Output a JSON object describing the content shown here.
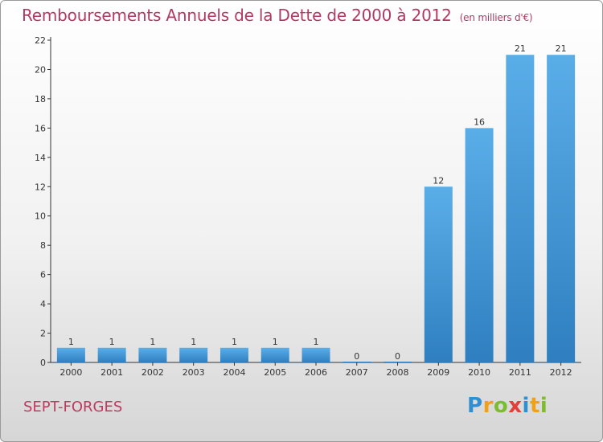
{
  "header": {
    "title": "Remboursements Annuels de la Dette de 2000 à 2012",
    "unit": "(en milliers d'€)"
  },
  "footer": {
    "place": "SEPT-FORGES",
    "logo": [
      "P",
      "r",
      "o",
      "x",
      "i",
      "t",
      "i"
    ]
  },
  "colors": {
    "bar_top": "#5aaee8",
    "bar_bottom": "#2f7fc0",
    "title": "#b03a62"
  },
  "chart_data": {
    "type": "bar",
    "categories": [
      "2000",
      "2001",
      "2002",
      "2003",
      "2004",
      "2005",
      "2006",
      "2007",
      "2008",
      "2009",
      "2010",
      "2011",
      "2012"
    ],
    "values": [
      1,
      1,
      1,
      1,
      1,
      1,
      1,
      0,
      0,
      12,
      16,
      21,
      21
    ],
    "data_labels": [
      "1",
      "1",
      "1",
      "1",
      "1",
      "1",
      "1",
      "0",
      "0",
      "12",
      "16",
      "21",
      "21"
    ],
    "yticks": [
      "0",
      "2",
      "4",
      "6",
      "8",
      "10",
      "12",
      "14",
      "16",
      "18",
      "20",
      "22"
    ],
    "ylim": [
      0,
      22
    ],
    "grid": false,
    "legend": "none"
  }
}
